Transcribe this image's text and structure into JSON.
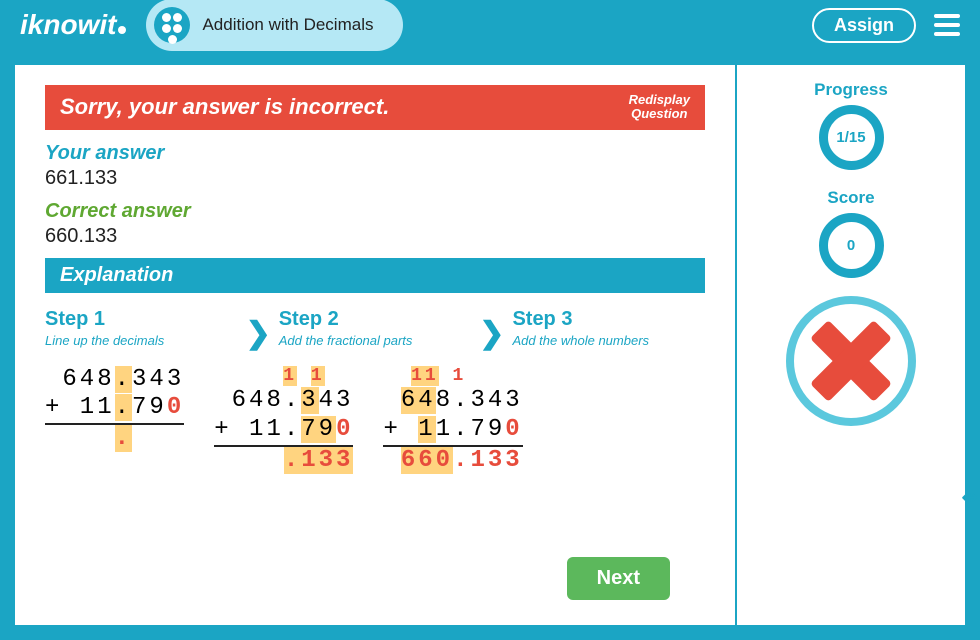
{
  "header": {
    "logo": "iknowit",
    "title": "Addition with Decimals",
    "assign": "Assign"
  },
  "feedback": {
    "message": "Sorry, your answer is incorrect.",
    "redisplay_line1": "Redisplay",
    "redisplay_line2": "Question"
  },
  "answers": {
    "your_label": "Your answer",
    "your_value": "661.133",
    "correct_label": "Correct answer",
    "correct_value": "660.133"
  },
  "explanation": {
    "title": "Explanation",
    "steps": [
      {
        "title": "Step 1",
        "desc": "Line up the decimals"
      },
      {
        "title": "Step 2",
        "desc": "Add the fractional parts"
      },
      {
        "title": "Step 3",
        "desc": "Add the whole numbers"
      }
    ]
  },
  "next": "Next",
  "sidebar": {
    "progress_label": "Progress",
    "progress_value": "1/15",
    "score_label": "Score",
    "score_value": "0"
  },
  "math": {
    "operand1": "648.343",
    "operand2": "11.790",
    "result": "660.133"
  }
}
